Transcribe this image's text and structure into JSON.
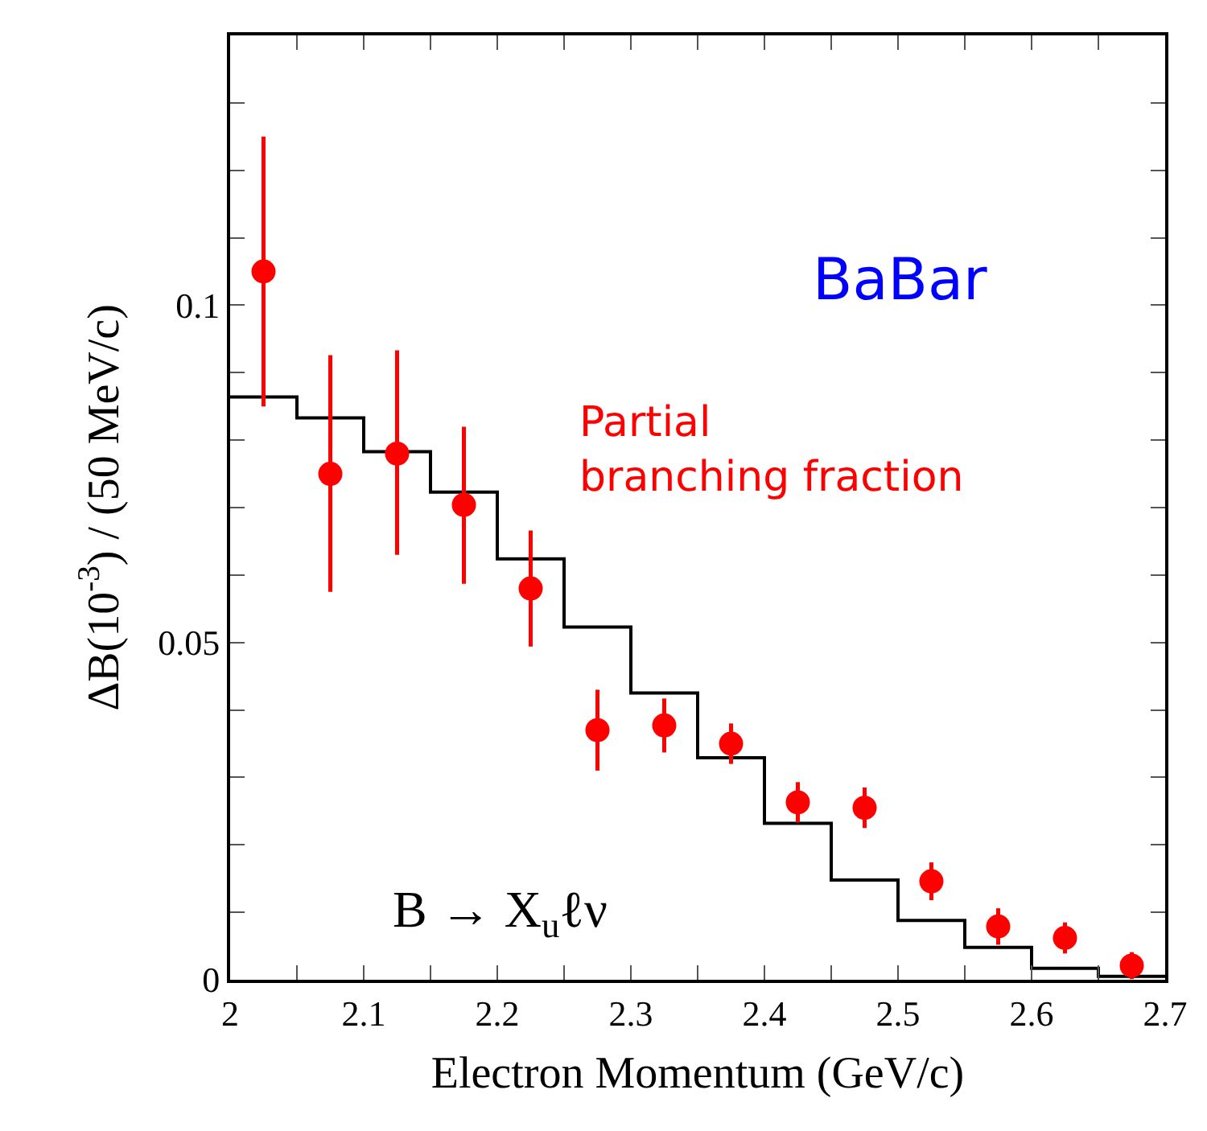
{
  "chart_data": {
    "type": "scatter",
    "xlabel": "Electron Momentum (GeV/c)",
    "ylabel": "ΔB(10$^{-3}$) / (50 MeV/c)",
    "xlim": [
      2,
      2.7
    ],
    "ylim": [
      0,
      0.14
    ],
    "xticks": [
      2,
      {
        "value": 2.05,
        "label": null
      },
      2.1,
      {
        "value": 2.15,
        "label": null
      },
      2.2,
      {
        "value": 2.25,
        "label": null
      },
      2.3,
      {
        "value": 2.35,
        "label": null
      },
      2.4,
      {
        "value": 2.45,
        "label": null
      },
      2.5,
      {
        "value": 2.55,
        "label": null
      },
      2.6,
      {
        "value": 2.65,
        "label": null
      },
      2.7
    ],
    "yticks": [
      0,
      {
        "value": 0.01,
        "label": null
      },
      {
        "value": 0.02,
        "label": null
      },
      {
        "value": 0.03,
        "label": null
      },
      {
        "value": 0.04,
        "label": null
      },
      0.05,
      {
        "value": 0.06,
        "label": null
      },
      {
        "value": 0.07,
        "label": null
      },
      {
        "value": 0.08,
        "label": null
      },
      {
        "value": 0.09,
        "label": null
      },
      0.1,
      {
        "value": 0.11,
        "label": null
      },
      {
        "value": 0.12,
        "label": null
      },
      {
        "value": 0.13,
        "label": null
      }
    ],
    "series": [
      {
        "type": "histogram",
        "color": "#000000",
        "bins": [
          2.0,
          2.05,
          2.1,
          2.15,
          2.2,
          2.25,
          2.3,
          2.35,
          2.4,
          2.45,
          2.5,
          2.55,
          2.6,
          2.65,
          2.7
        ],
        "values": [
          0.0864,
          0.0833,
          0.0783,
          0.0723,
          0.0624,
          0.0523,
          0.0425,
          0.0329,
          0.0232,
          0.0148,
          0.0088,
          0.0048,
          0.0017,
          0.0005
        ]
      },
      {
        "type": "scatter",
        "color": "#ff0000",
        "marker": "circle",
        "x": [
          2.025,
          2.075,
          2.125,
          2.175,
          2.225,
          2.275,
          2.325,
          2.375,
          2.425,
          2.475,
          2.525,
          2.575,
          2.625,
          2.675
        ],
        "values": [
          0.105,
          0.075,
          0.078,
          0.0704,
          0.058,
          0.037,
          0.0377,
          0.035,
          0.0263,
          0.0255,
          0.0146,
          0.0079,
          0.0062,
          0.0021
        ],
        "errors": [
          [
            0.085,
            0.125
          ],
          [
            0.0575,
            0.0926
          ],
          [
            0.063,
            0.0933
          ],
          [
            0.0587,
            0.082
          ],
          [
            0.0494,
            0.0666
          ],
          [
            0.031,
            0.043
          ],
          [
            0.0337,
            0.0417
          ],
          [
            0.032,
            0.038
          ],
          0.003,
          0.003,
          0.0028,
          0.0027,
          0.0023,
          0.002
        ]
      }
    ],
    "annotations": [
      "BaBar",
      "Partial\nbranching fraction",
      "B → X$_{u}$ℓν"
    ]
  }
}
